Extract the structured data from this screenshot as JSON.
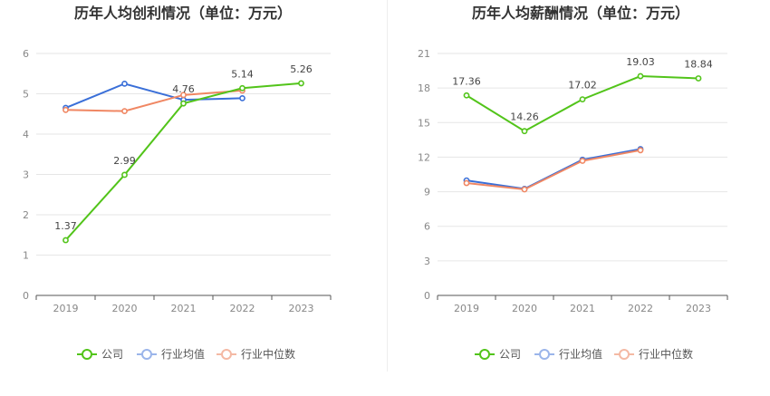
{
  "chart_data": [
    {
      "type": "line",
      "title": "历年人均创利情况（单位：万元）",
      "categories": [
        "2019",
        "2020",
        "2021",
        "2022",
        "2023"
      ],
      "ylim": [
        0,
        6
      ],
      "yticks": [
        0,
        1,
        2,
        3,
        4,
        5,
        6
      ],
      "grid": true,
      "legend_position": "bottom",
      "series": [
        {
          "name": "公司",
          "color": "#52c41a",
          "values": [
            1.37,
            2.99,
            4.76,
            5.14,
            5.26
          ],
          "labels": [
            "1.37",
            "2.99",
            "4.76",
            "5.14",
            "5.26"
          ]
        },
        {
          "name": "行业均值",
          "color": "#3a6fd8",
          "values": [
            4.65,
            5.25,
            4.85,
            4.89,
            null
          ]
        },
        {
          "name": "行业中位数",
          "color": "#f08763",
          "values": [
            4.6,
            4.57,
            4.97,
            5.08,
            null
          ]
        }
      ]
    },
    {
      "type": "line",
      "title": "历年人均薪酬情况（单位：万元）",
      "categories": [
        "2019",
        "2020",
        "2021",
        "2022",
        "2023"
      ],
      "ylim": [
        0,
        21
      ],
      "yticks": [
        0,
        3,
        6,
        9,
        12,
        15,
        18,
        21
      ],
      "grid": true,
      "legend_position": "bottom",
      "series": [
        {
          "name": "公司",
          "color": "#52c41a",
          "values": [
            17.36,
            14.26,
            17.02,
            19.03,
            18.84
          ],
          "labels": [
            "17.36",
            "14.26",
            "17.02",
            "19.03",
            "18.84"
          ]
        },
        {
          "name": "行业均值",
          "color": "#3a6fd8",
          "values": [
            9.98,
            9.25,
            11.78,
            12.7,
            null
          ]
        },
        {
          "name": "行业中位数",
          "color": "#f08763",
          "values": [
            9.75,
            9.2,
            11.68,
            12.6,
            null
          ]
        }
      ]
    }
  ],
  "legend": {
    "company": "公司",
    "industry_avg": "行业均值",
    "industry_median": "行业中位数"
  },
  "colors": {
    "company": "#52c41a",
    "industry_avg": "#3a6fd8",
    "industry_median": "#f08763",
    "legend_avg": "#9bb5ea",
    "legend_median": "#f4b9a4"
  }
}
